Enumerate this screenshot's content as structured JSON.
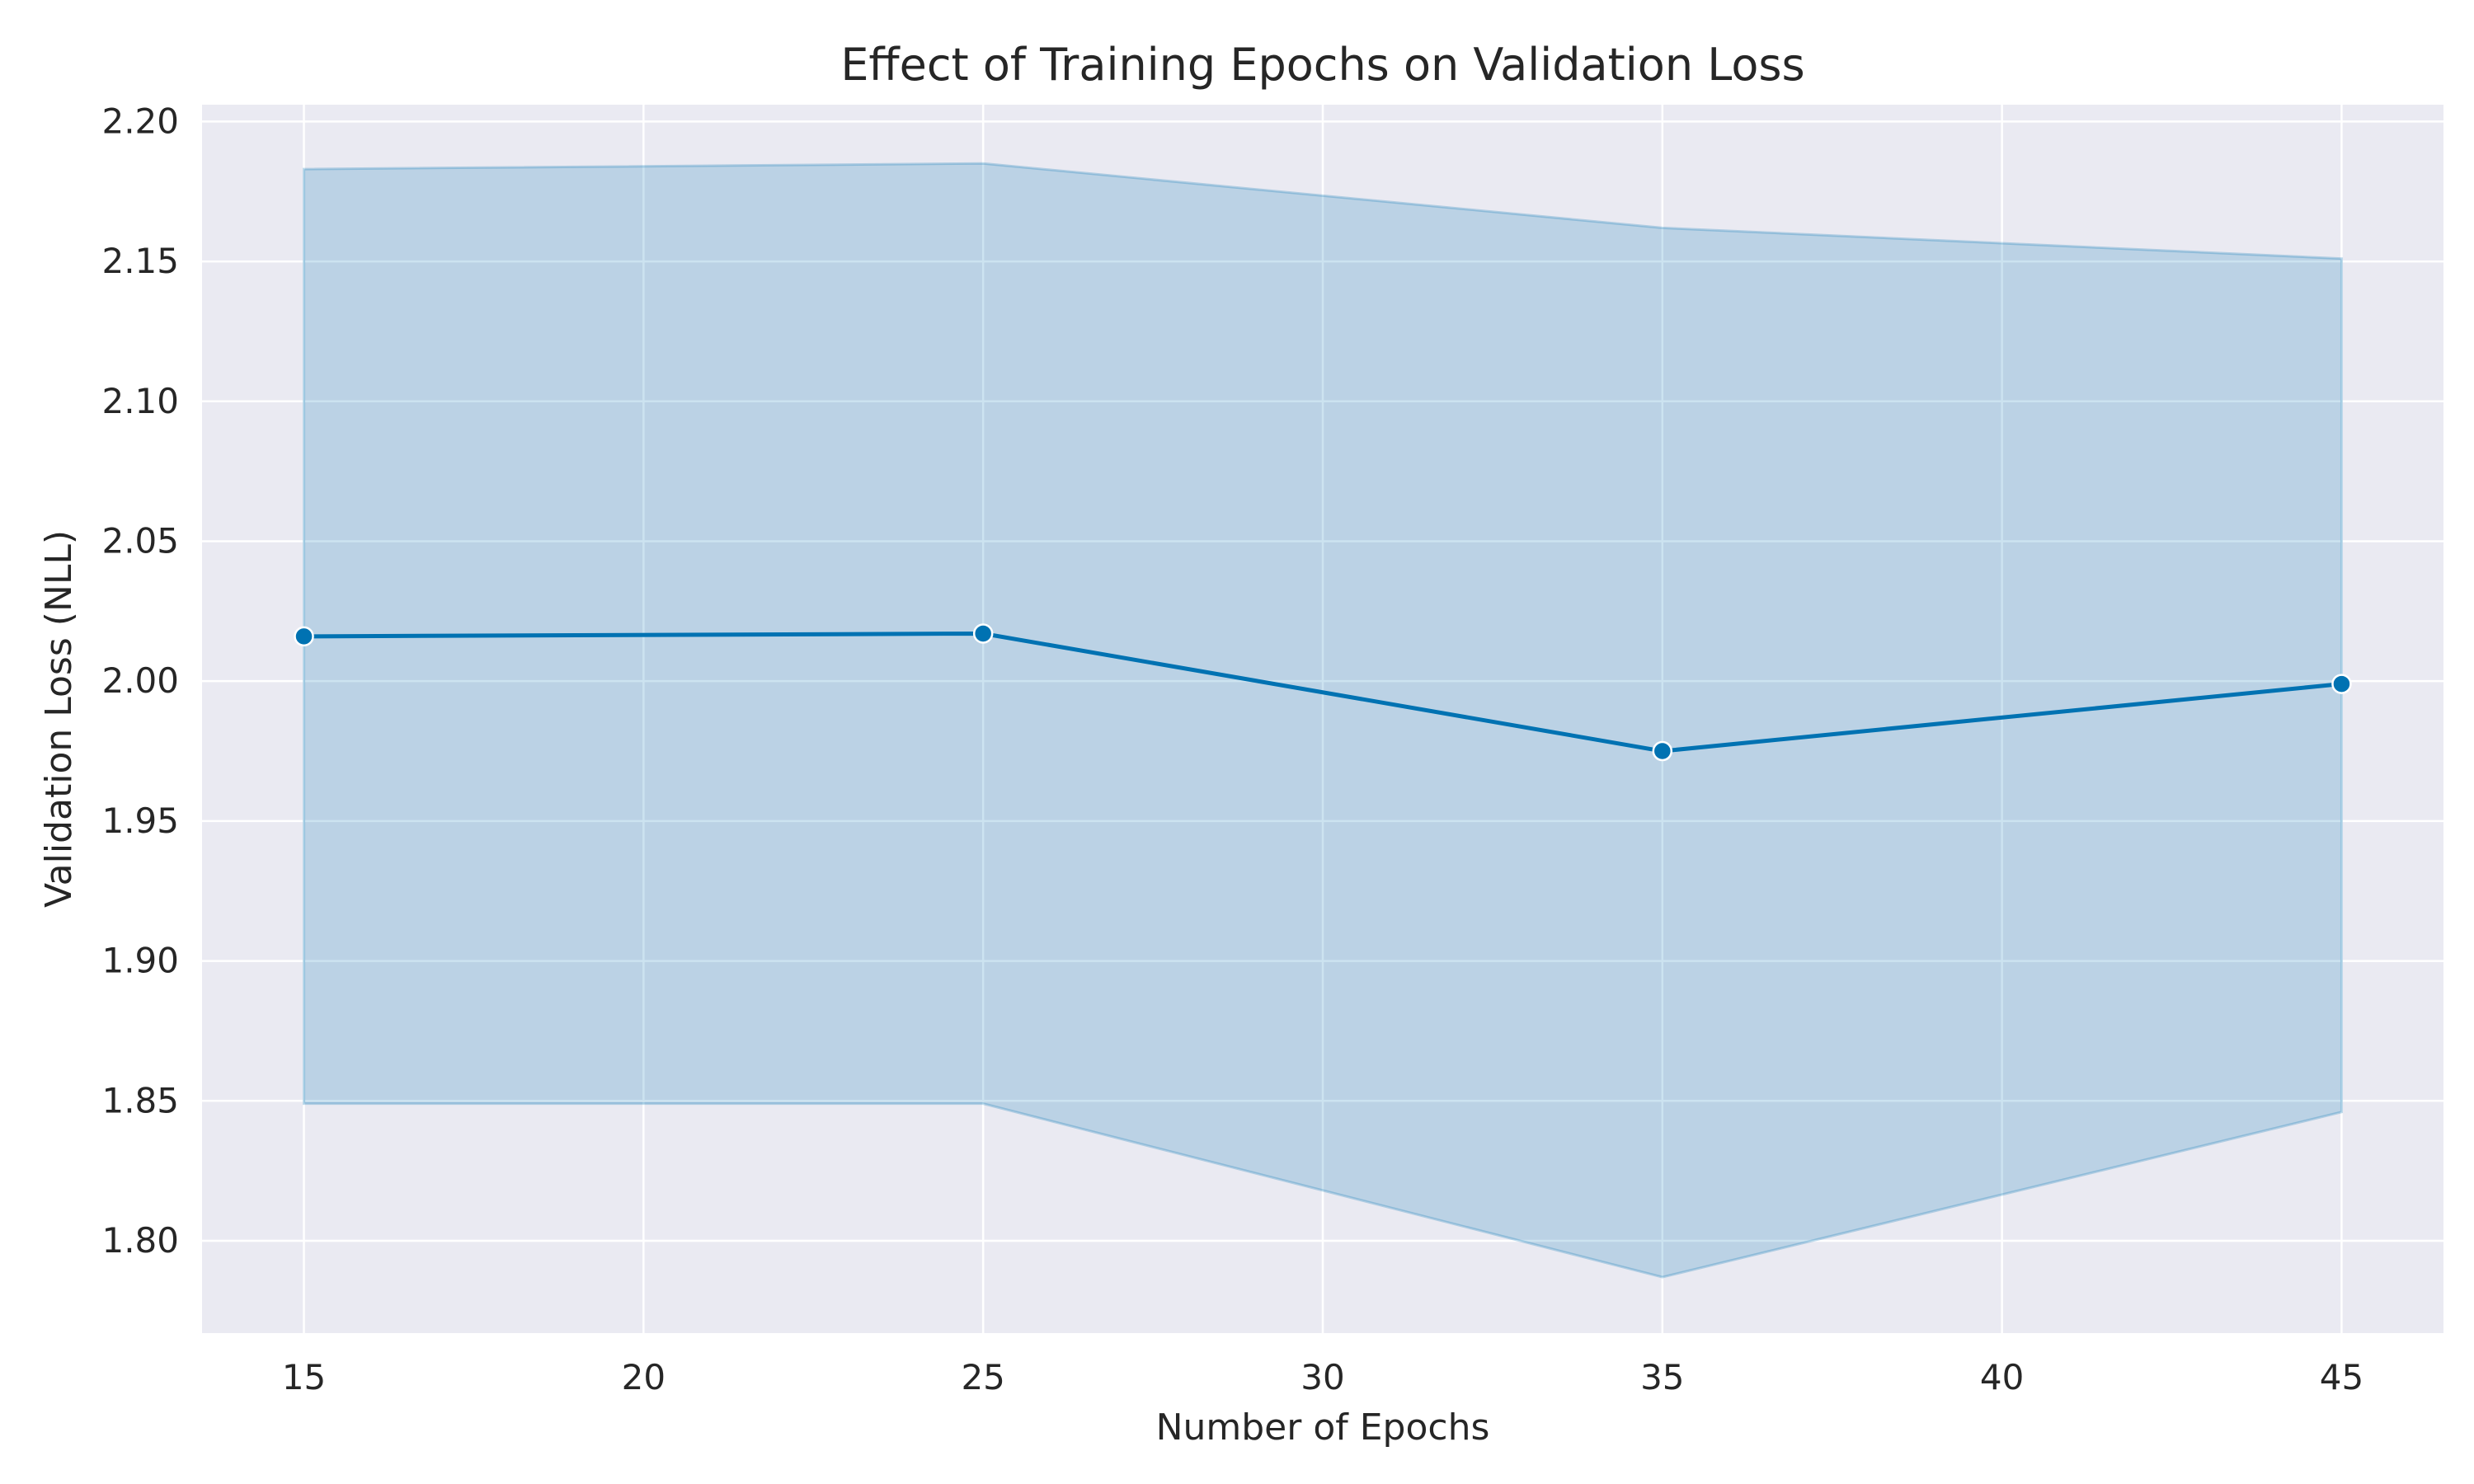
{
  "chart_data": {
    "type": "line",
    "title": "Effect of Training Epochs on Validation Loss",
    "xlabel": "Number of Epochs",
    "ylabel": "Validation Loss (NLL)",
    "xlim": [
      13.5,
      46.5
    ],
    "ylim": [
      1.767,
      2.206
    ],
    "xticks": [
      15,
      20,
      25,
      30,
      35,
      40,
      45
    ],
    "yticks": [
      1.8,
      1.85,
      1.9,
      1.95,
      2.0,
      2.05,
      2.1,
      2.15,
      2.2
    ],
    "grid": true,
    "series": [
      {
        "x": [
          15,
          25,
          35,
          45
        ],
        "y": [
          2.016,
          2.017,
          1.975,
          1.999
        ],
        "ci_lower": [
          1.849,
          1.849,
          1.787,
          1.846
        ],
        "ci_upper": [
          2.183,
          2.185,
          2.162,
          2.151
        ],
        "color": "#0072b2"
      }
    ],
    "colors": {
      "plot_background": "#eaeaf2",
      "grid": "#ffffff",
      "line": "#0072b2",
      "band": "#0072b2"
    }
  }
}
